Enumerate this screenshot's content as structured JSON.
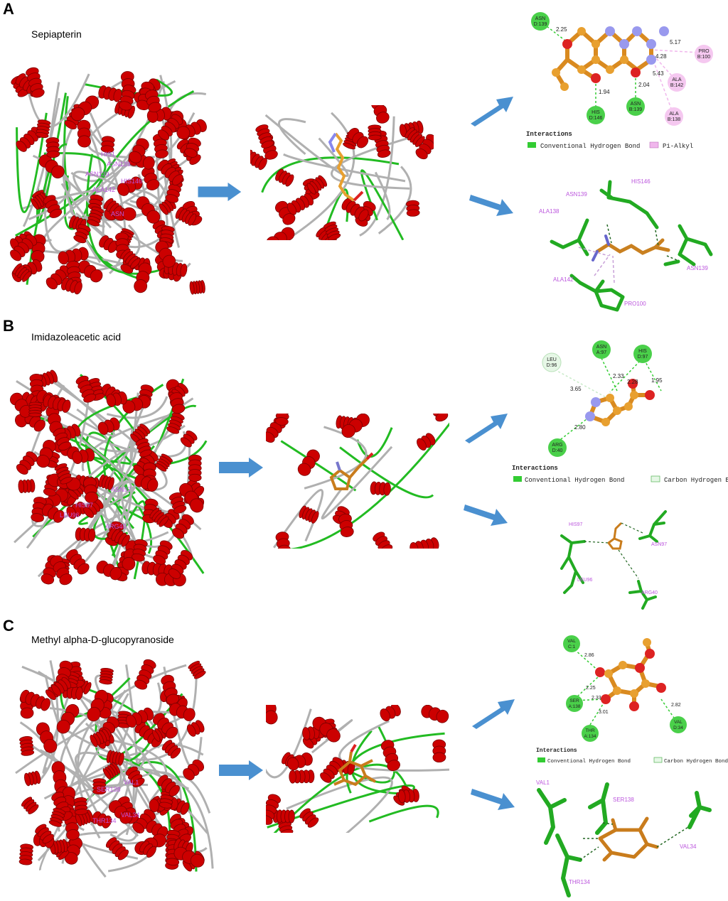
{
  "panels": [
    {
      "letter": "A",
      "compound": "Sepiapterin",
      "protein_labels": [
        "HIS1",
        "ASN139",
        "ASN139",
        "HIS146",
        "ALA142",
        "ASN"
      ],
      "interactions_title": "Interactions",
      "legend": [
        {
          "label": "Conventional Hydrogen Bond",
          "color": "#33cc33",
          "style": "solid"
        },
        {
          "label": "Pi-Alkyl",
          "color": "#f0b6ec",
          "style": "solid"
        }
      ],
      "residues_2d": [
        {
          "name": "ASN",
          "chain": "D:139",
          "type": "hbond"
        },
        {
          "name": "HIS",
          "chain": "D:146",
          "type": "hbond"
        },
        {
          "name": "ASN",
          "chain": "B:139",
          "type": "hbond"
        },
        {
          "name": "PRO",
          "chain": "B:100",
          "type": "pialkyl"
        },
        {
          "name": "ALA",
          "chain": "B:142",
          "type": "pialkyl"
        },
        {
          "name": "ALA",
          "chain": "B:138",
          "type": "pialkyl"
        }
      ],
      "distances": [
        "2.25",
        "1.94",
        "2.04",
        "5.17",
        "4.28",
        "5.43"
      ],
      "residues_3d": [
        "HIS146",
        "ASN139",
        "ALA138",
        "ASN139",
        "ALA142",
        "PRO100"
      ]
    },
    {
      "letter": "B",
      "compound": "Imidazoleacetic acid",
      "protein_labels": [
        "HIS97",
        "LEU96",
        "ARG40",
        "ASN97"
      ],
      "interactions_title": "Interactions",
      "legend": [
        {
          "label": "Conventional Hydrogen Bond",
          "color": "#33cc33",
          "style": "solid"
        },
        {
          "label": "Carbon Hydrogen Bond",
          "color": "#e6f7e6",
          "style": "light"
        }
      ],
      "residues_2d": [
        {
          "name": "LEU",
          "chain": "D:96",
          "type": "carbon"
        },
        {
          "name": "ASN",
          "chain": "A:97",
          "type": "hbond"
        },
        {
          "name": "HIS",
          "chain": "D:97",
          "type": "hbond"
        },
        {
          "name": "ARG",
          "chain": "D:40",
          "type": "hbond"
        }
      ],
      "distances": [
        "3.65",
        "2.33",
        "2.28",
        "1.95",
        "2.80"
      ],
      "residues_3d": [
        "HIS97",
        "ASN97",
        "LEU96",
        "ARG40"
      ]
    },
    {
      "letter": "C",
      "compound": "Methyl alpha-D-glucopyranoside",
      "protein_labels": [
        "VAL1",
        "SER138",
        "THR134",
        "VAL34"
      ],
      "interactions_title": "Interactions",
      "legend": [
        {
          "label": "Conventional Hydrogen Bond",
          "color": "#33cc33",
          "style": "solid"
        },
        {
          "label": "Carbon Hydrogen Bond",
          "color": "#e6f7e6",
          "style": "light"
        }
      ],
      "residues_2d": [
        {
          "name": "VAL",
          "chain": "C:1",
          "type": "hbond"
        },
        {
          "name": "SER",
          "chain": "A:138",
          "type": "hbond"
        },
        {
          "name": "THR",
          "chain": "A:134",
          "type": "hbond"
        },
        {
          "name": "VAL",
          "chain": "D:34",
          "type": "hbond"
        }
      ],
      "distances": [
        "2.86",
        "2.25",
        "2.33",
        "3.01",
        "2.82"
      ],
      "residues_3d": [
        "VAL1",
        "SER138",
        "VAL34",
        "THR134"
      ]
    }
  ],
  "colors": {
    "helix": "#cc0000",
    "loop": "#b0b0b0",
    "turn": "#22bb22",
    "ligand": "#e8a030",
    "nitrogen": "#9999ee",
    "oxygen": "#dd2222",
    "residue_label": "#bb55dd",
    "arrow": "#4a90d0"
  }
}
